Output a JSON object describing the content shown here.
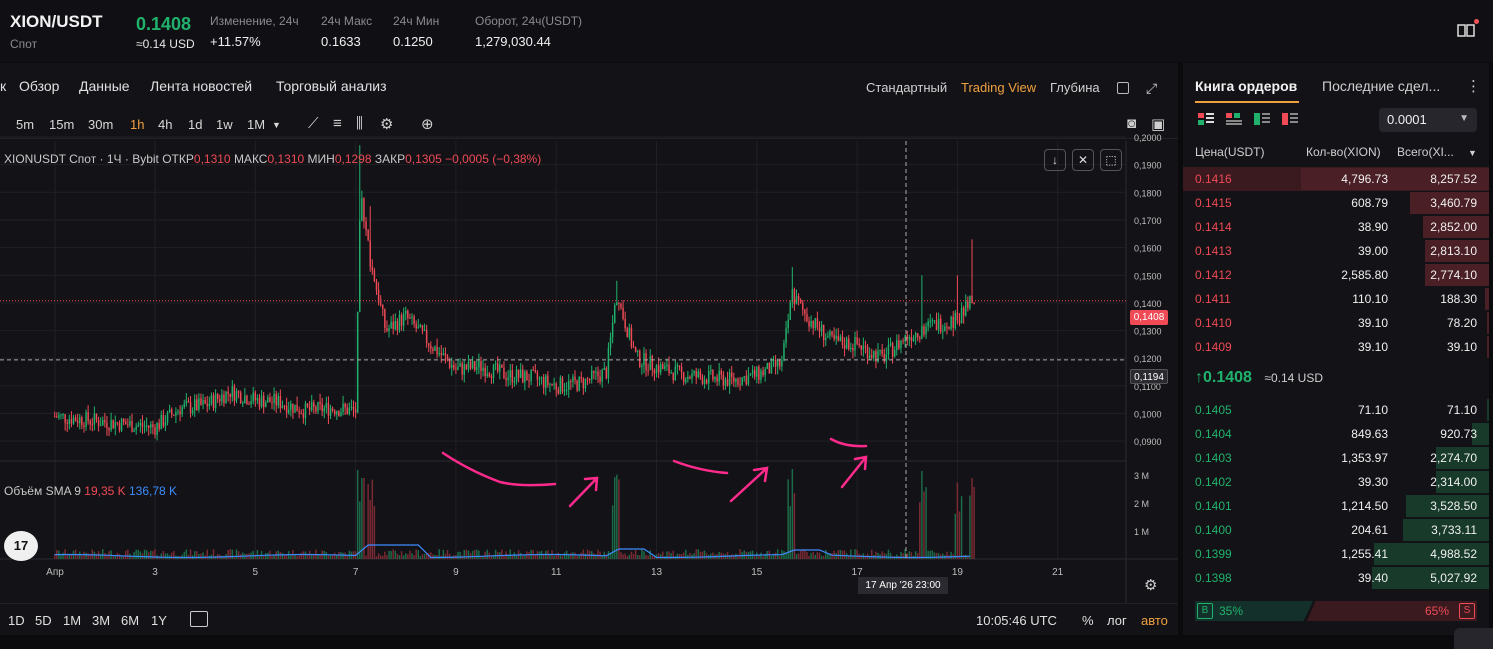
{
  "ticker": {
    "pair": "XION/USDT",
    "market": "Спот",
    "price": "0.1408",
    "price_usd": "≈0.14 USD",
    "stats": [
      {
        "label": "Изменение, 24ч",
        "value": "+11.57%"
      },
      {
        "label": "24ч Макс",
        "value": "0.1633"
      },
      {
        "label": "24ч Мин",
        "value": "0.1250"
      },
      {
        "label": "Оборот, 24ч(USDT)",
        "value": "1,279,030.44"
      }
    ]
  },
  "chart_tabs": {
    "partial": "к",
    "tabs": [
      "Обзор",
      "Данные",
      "Лента новостей",
      "Торговый анализ"
    ],
    "views": [
      "Стандартный",
      "Trading View",
      "Глубина"
    ],
    "active_view": "Trading View"
  },
  "timeframes": {
    "items": [
      "5m",
      "15m",
      "30m",
      "1h",
      "4h",
      "1d",
      "1w",
      "1M"
    ],
    "active": "1h"
  },
  "legend": {
    "symbol": "XIONUSDT Спот · 1Ч · Bybit",
    "open_label": "ОТКР",
    "open": "0,1310",
    "high_label": "МАКС",
    "high": "0,1310",
    "low_label": "МИН",
    "low": "0,1298",
    "close_label": "ЗАКР",
    "close": "0,1305",
    "change": "−0,0005 (−0,38%)"
  },
  "volume_legend": {
    "label": "Объём SMA 9",
    "v1": "19,35 K",
    "v2": "136,78 K"
  },
  "price_axis": [
    "0,2000",
    "0,1900",
    "0,1800",
    "0,1700",
    "0,1600",
    "0,1500",
    "0,1400",
    "0,1300",
    "0,1200",
    "0,1100",
    "0,1000",
    "0,0900"
  ],
  "volume_axis": [
    "3 M",
    "2 M",
    "1 M"
  ],
  "time_axis": [
    "Апр",
    "3",
    "5",
    "7",
    "9",
    "11",
    "13",
    "15",
    "17",
    "19",
    "21"
  ],
  "last_price_tag": "0,1408",
  "crosshair_price_tag": "0,1194",
  "crosshair_time_tag": "17 Апр '26    23:00",
  "ranges": {
    "items": [
      "1D",
      "5D",
      "1M",
      "3M",
      "6M",
      "1Y"
    ],
    "clock": "10:05:46 UTC",
    "percent": "%",
    "log": "лог",
    "auto": "авто"
  },
  "tv_logo": "17",
  "order_book": {
    "tabs": [
      "Книга ордеров",
      "Последние сдел..."
    ],
    "precision": "0.0001",
    "headers": {
      "price": "Цена(USDT)",
      "qty": "Кол-во(XION)",
      "total": "Всего(XI..."
    },
    "asks": [
      {
        "price": "0.1416",
        "qty": "4,796.73",
        "total": "8,257.52",
        "depth": 1.0
      },
      {
        "price": "0.1415",
        "qty": "608.79",
        "total": "3,460.79",
        "depth": 0.42
      },
      {
        "price": "0.1414",
        "qty": "38.90",
        "total": "2,852.00",
        "depth": 0.35
      },
      {
        "price": "0.1413",
        "qty": "39.00",
        "total": "2,813.10",
        "depth": 0.34
      },
      {
        "price": "0.1412",
        "qty": "2,585.80",
        "total": "2,774.10",
        "depth": 0.34
      },
      {
        "price": "0.1411",
        "qty": "110.10",
        "total": "188.30",
        "depth": 0.02
      },
      {
        "price": "0.1410",
        "qty": "39.10",
        "total": "78.20",
        "depth": 0.01
      },
      {
        "price": "0.1409",
        "qty": "39.10",
        "total": "39.10",
        "depth": 0.005
      }
    ],
    "mid_price": "0.1408",
    "mid_usd": "≈0.14 USD",
    "bids": [
      {
        "price": "0.1405",
        "qty": "71.10",
        "total": "71.10",
        "depth": 0.01
      },
      {
        "price": "0.1404",
        "qty": "849.63",
        "total": "920.73",
        "depth": 0.09
      },
      {
        "price": "0.1403",
        "qty": "1,353.97",
        "total": "2,274.70",
        "depth": 0.28
      },
      {
        "price": "0.1402",
        "qty": "39.30",
        "total": "2,314.00",
        "depth": 0.28
      },
      {
        "price": "0.1401",
        "qty": "1,214.50",
        "total": "3,528.50",
        "depth": 0.44
      },
      {
        "price": "0.1400",
        "qty": "204.61",
        "total": "3,733.11",
        "depth": 0.46
      },
      {
        "price": "0.1399",
        "qty": "1,255.41",
        "total": "4,988.52",
        "depth": 0.61
      },
      {
        "price": "0.1398",
        "qty": "39.40",
        "total": "5,027.92",
        "depth": 0.62
      }
    ],
    "buy_label": "B",
    "buy_pct": "35%",
    "sell_label": "S",
    "sell_pct": "65%"
  },
  "colors": {
    "up": "#20b26c",
    "down": "#ef4a55",
    "accent": "#f0a040",
    "annotation": "#ff2a8c"
  },
  "chart_data": {
    "type": "candlestick",
    "symbol": "XIONUSDT",
    "interval": "1h",
    "ylim": [
      0.085,
      0.2
    ],
    "x_range": [
      "Apr 1",
      "Apr 21"
    ],
    "close_series": [
      [
        "Apr 1",
        0.099
      ],
      [
        "Apr 2",
        0.097
      ],
      [
        "Apr 3",
        0.095
      ],
      [
        "Apr 3.5",
        0.102
      ],
      [
        "Apr 4",
        0.103
      ],
      [
        "Apr 4.5",
        0.108
      ],
      [
        "Apr 5",
        0.105
      ],
      [
        "Apr 5.5",
        0.104
      ],
      [
        "Apr 6",
        0.101
      ],
      [
        "Apr 6.5",
        0.102
      ],
      [
        "Apr 7",
        0.101
      ],
      [
        "Apr 7.1",
        0.18
      ],
      [
        "Apr 7.3",
        0.155
      ],
      [
        "Apr 7.6",
        0.13
      ],
      [
        "Apr 8",
        0.135
      ],
      [
        "Apr 8.5",
        0.125
      ],
      [
        "Apr 9",
        0.116
      ],
      [
        "Apr 9.5",
        0.117
      ],
      [
        "Apr 10",
        0.114
      ],
      [
        "Apr 10.5",
        0.113
      ],
      [
        "Apr 11",
        0.11
      ],
      [
        "Apr 11.5",
        0.111
      ],
      [
        "Apr 12",
        0.115
      ],
      [
        "Apr 12.2",
        0.143
      ],
      [
        "Apr 12.6",
        0.12
      ],
      [
        "Apr 13",
        0.117
      ],
      [
        "Apr 13.5",
        0.114
      ],
      [
        "Apr 14",
        0.113
      ],
      [
        "Apr 14.5",
        0.112
      ],
      [
        "Apr 15",
        0.114
      ],
      [
        "Apr 15.5",
        0.118
      ],
      [
        "Apr 15.7",
        0.143
      ],
      [
        "Apr 16",
        0.135
      ],
      [
        "Apr 16.5",
        0.126
      ],
      [
        "Apr 17",
        0.125
      ],
      [
        "Apr 17.5",
        0.12
      ],
      [
        "Apr 18",
        0.128
      ],
      [
        "Apr 18.5",
        0.132
      ],
      [
        "Apr 19",
        0.134
      ],
      [
        "Apr 19.3",
        0.1408
      ]
    ],
    "volume_axis_max": "3 M"
  }
}
